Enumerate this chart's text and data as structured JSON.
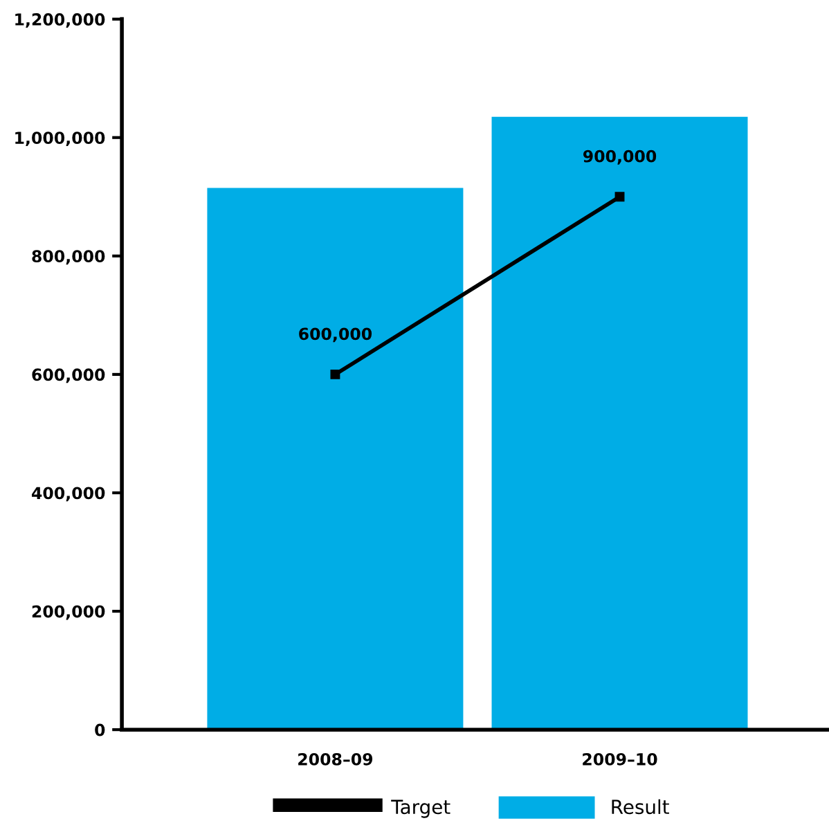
{
  "chart_data": {
    "type": "bar",
    "categories": [
      "2008–09",
      "2009–10"
    ],
    "series": [
      {
        "name": "Target",
        "type": "line",
        "color": "#000000",
        "values": [
          600000,
          900000
        ],
        "value_labels": [
          "600,000",
          "900,000"
        ],
        "marker": "square"
      },
      {
        "name": "Result",
        "color": "#00ade6",
        "values": [
          915000,
          1035000
        ]
      }
    ],
    "ylim": [
      0,
      1200000
    ],
    "yticks": [
      {
        "value": 0,
        "label": "0"
      },
      {
        "value": 200000,
        "label": "200,000"
      },
      {
        "value": 400000,
        "label": "400,000"
      },
      {
        "value": 600000,
        "label": "600,000"
      },
      {
        "value": 800000,
        "label": "800,000"
      },
      {
        "value": 1000000,
        "label": "1,000,000"
      },
      {
        "value": 1200000,
        "label": "1,200,000"
      }
    ],
    "grid": false,
    "legend": "bottom"
  }
}
